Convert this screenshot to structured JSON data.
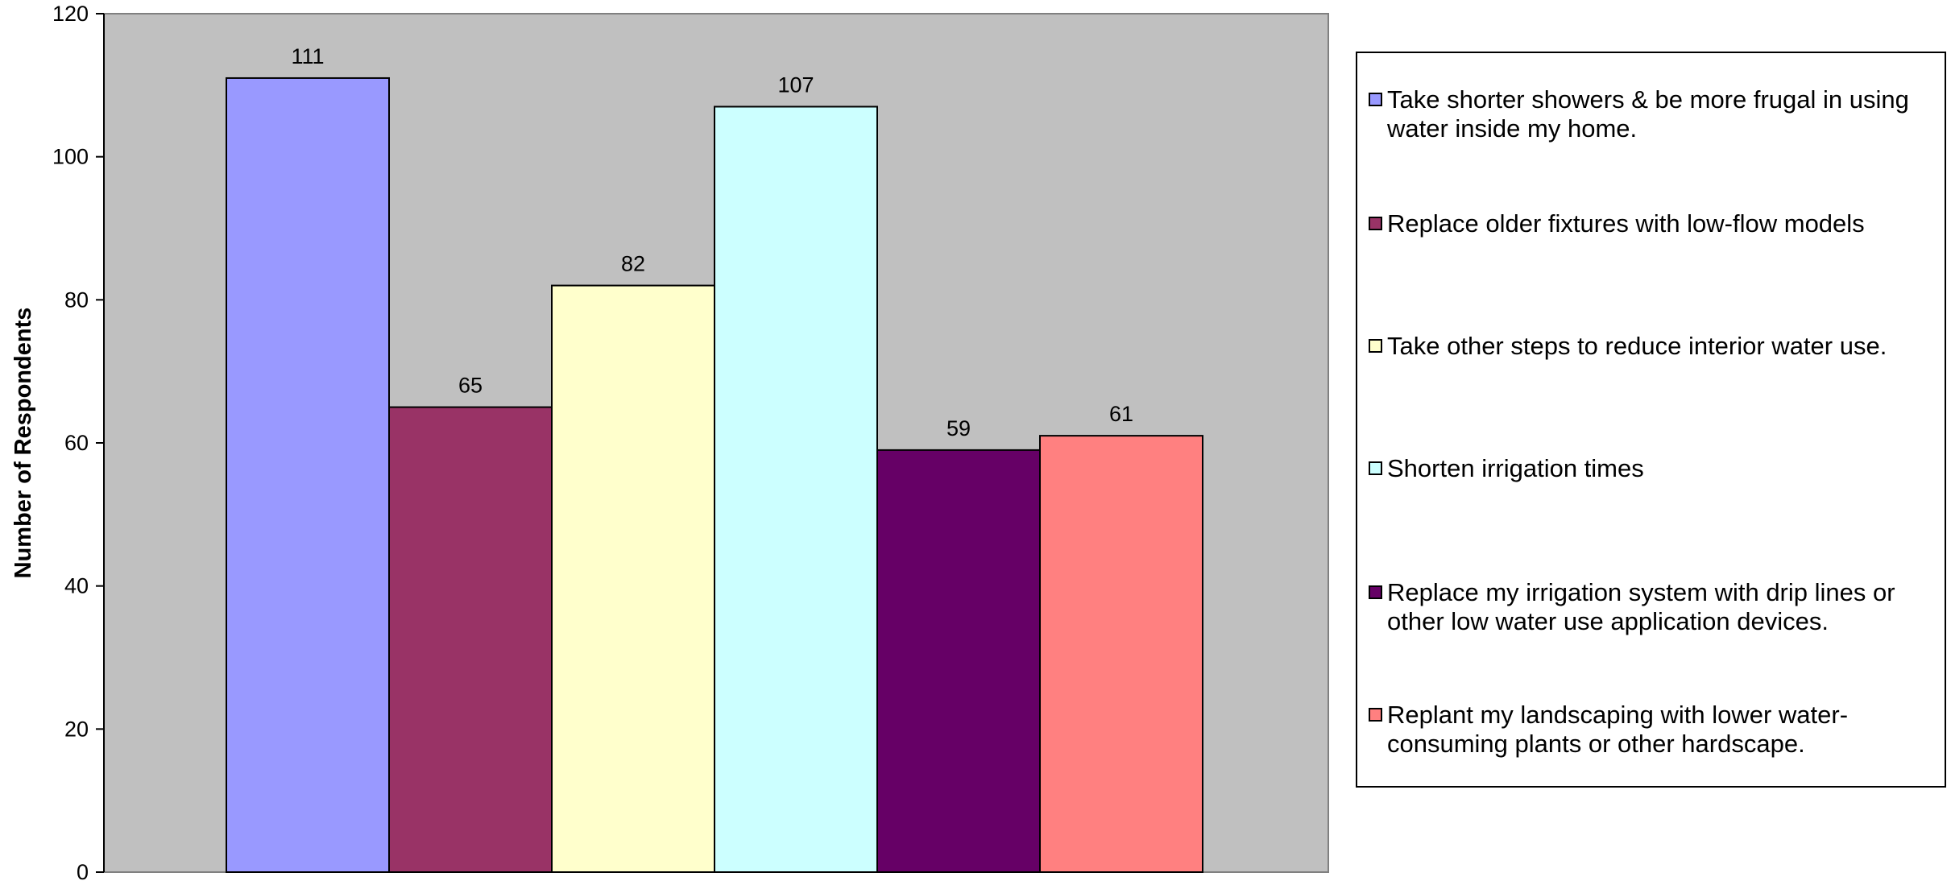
{
  "chart_data": {
    "type": "bar",
    "ylabel": "Number of Respondents",
    "xlabel": "",
    "ylim": [
      0,
      120
    ],
    "yticks": [
      0,
      20,
      40,
      60,
      80,
      100,
      120
    ],
    "grid": false,
    "legend_position": "right",
    "plot_background": "#C0C0C0",
    "series": [
      {
        "name": "Take shorter showers & be more frugal in using water inside my home.",
        "value": 111,
        "color": "#9999FF"
      },
      {
        "name": "Replace older fixtures with low-flow models",
        "value": 65,
        "color": "#993366"
      },
      {
        "name": "Take other steps to reduce interior water use.",
        "value": 82,
        "color": "#FFFFCC"
      },
      {
        "name": "Shorten irrigation times",
        "value": 107,
        "color": "#CCFFFF"
      },
      {
        "name": "Replace my irrigation system with drip lines or other low water use application devices.",
        "value": 59,
        "color": "#660066"
      },
      {
        "name": "Replant my landscaping with lower water-consuming plants or other hardscape.",
        "value": 61,
        "color": "#FF8080"
      }
    ]
  }
}
